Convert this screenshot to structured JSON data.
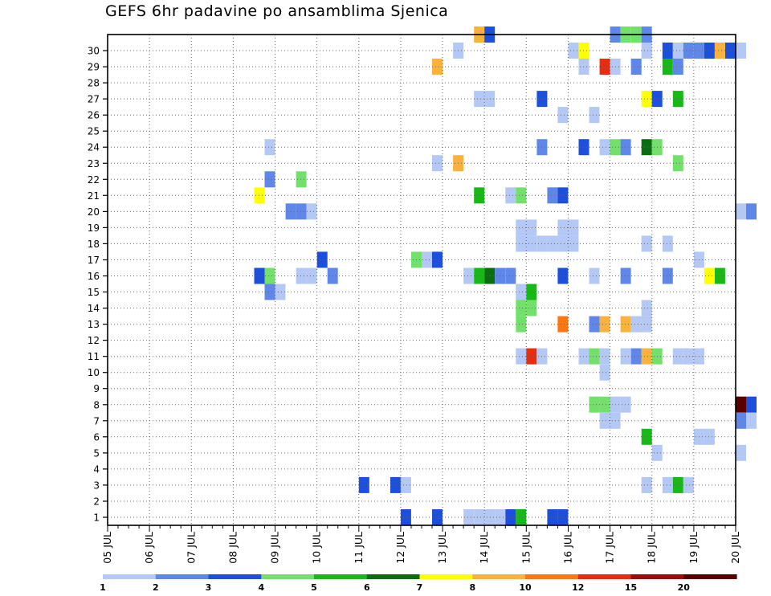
{
  "title": "GEFS 6hr padavine po ansamblima Sjenica",
  "chart_data": {
    "type": "heatmap",
    "title": "GEFS 6hr padavine po ansamblima Sjenica",
    "x_tick_labels": [
      "05 JUL",
      "06 JUL",
      "07 JUL",
      "08 JUL",
      "09 JUL",
      "10 JUL",
      "11 JUL",
      "12 JUL",
      "13 JUL",
      "14 JUL",
      "15 JUL",
      "16 JUL",
      "17 JUL",
      "18 JUL",
      "19 JUL",
      "20 JUL"
    ],
    "y_tick_labels": [
      "1",
      "2",
      "3",
      "4",
      "5",
      "6",
      "7",
      "8",
      "9",
      "10",
      "11",
      "12",
      "13",
      "14",
      "15",
      "16",
      "17",
      "18",
      "19",
      "20",
      "21",
      "22",
      "23",
      "24",
      "25",
      "26",
      "27",
      "28",
      "29",
      "30"
    ],
    "ylim": [
      0,
      30
    ],
    "grid": true,
    "colorbar": {
      "labels": [
        "1",
        "2",
        "3",
        "4",
        "5",
        "6",
        "7",
        "8",
        "10",
        "12",
        "15",
        "20"
      ],
      "colors": [
        "#b4c8f5",
        "#5f87ea",
        "#1b4fdc",
        "#74e06c",
        "#18b818",
        "#0b6d12",
        "#ffff00",
        "#fbb13d",
        "#fb7714",
        "#e52d0f",
        "#9b0d0d",
        "#5b0000"
      ]
    },
    "cells_note": "day = days after 05 JUL 00Z (6-hourly steps), member = ensemble member row 0..30, level = colorbar index 0..11",
    "cells": [
      [
        8.75,
        30,
        7
      ],
      [
        9.0,
        30,
        2
      ],
      [
        12.0,
        30,
        1
      ],
      [
        12.25,
        30,
        3
      ],
      [
        12.5,
        30,
        3
      ],
      [
        12.75,
        30,
        1
      ],
      [
        8.25,
        29,
        0
      ],
      [
        11.0,
        29,
        0
      ],
      [
        11.25,
        29,
        6
      ],
      [
        12.75,
        29,
        0
      ],
      [
        13.25,
        29,
        2
      ],
      [
        13.5,
        29,
        0
      ],
      [
        13.75,
        29,
        1
      ],
      [
        14.0,
        29,
        1
      ],
      [
        14.25,
        29,
        2
      ],
      [
        14.5,
        29,
        7
      ],
      [
        14.75,
        29,
        2
      ],
      [
        15.0,
        29,
        0
      ],
      [
        7.75,
        28,
        7
      ],
      [
        11.25,
        28,
        0
      ],
      [
        11.75,
        28,
        9
      ],
      [
        12.0,
        28,
        0
      ],
      [
        12.5,
        28,
        1
      ],
      [
        13.25,
        28,
        4
      ],
      [
        13.5,
        28,
        1
      ],
      [
        8.75,
        26,
        0
      ],
      [
        9.0,
        26,
        0
      ],
      [
        10.25,
        26,
        2
      ],
      [
        12.75,
        26,
        6
      ],
      [
        13.0,
        26,
        2
      ],
      [
        13.5,
        26,
        4
      ],
      [
        10.75,
        25,
        0
      ],
      [
        11.5,
        25,
        0
      ],
      [
        3.75,
        23,
        0
      ],
      [
        10.25,
        23,
        1
      ],
      [
        11.25,
        23,
        2
      ],
      [
        11.75,
        23,
        0
      ],
      [
        12.0,
        23,
        3
      ],
      [
        12.25,
        23,
        1
      ],
      [
        12.75,
        23,
        5
      ],
      [
        13.0,
        23,
        3
      ],
      [
        7.75,
        22,
        0
      ],
      [
        8.25,
        22,
        7
      ],
      [
        13.5,
        22,
        3
      ],
      [
        3.75,
        21,
        1
      ],
      [
        4.5,
        21,
        3
      ],
      [
        3.5,
        20,
        6
      ],
      [
        8.75,
        20,
        4
      ],
      [
        9.5,
        20,
        0
      ],
      [
        9.75,
        20,
        3
      ],
      [
        10.5,
        20,
        1
      ],
      [
        10.75,
        20,
        2
      ],
      [
        4.25,
        19,
        1
      ],
      [
        4.5,
        19,
        1
      ],
      [
        4.75,
        19,
        0
      ],
      [
        15.0,
        19,
        0
      ],
      [
        15.25,
        19,
        1
      ],
      [
        9.75,
        18,
        0
      ],
      [
        10.0,
        18,
        0
      ],
      [
        10.75,
        18,
        0
      ],
      [
        11.0,
        18,
        0
      ],
      [
        9.75,
        17,
        0
      ],
      [
        10.0,
        17,
        0
      ],
      [
        10.25,
        17,
        0
      ],
      [
        10.5,
        17,
        0
      ],
      [
        10.75,
        17,
        0
      ],
      [
        11.0,
        17,
        0
      ],
      [
        12.75,
        17,
        0
      ],
      [
        13.25,
        17,
        0
      ],
      [
        5.0,
        16,
        2
      ],
      [
        7.25,
        16,
        3
      ],
      [
        7.5,
        16,
        0
      ],
      [
        7.75,
        16,
        2
      ],
      [
        14.0,
        16,
        0
      ],
      [
        3.5,
        15,
        2
      ],
      [
        3.75,
        15,
        3
      ],
      [
        4.5,
        15,
        0
      ],
      [
        4.75,
        15,
        0
      ],
      [
        5.25,
        15,
        1
      ],
      [
        8.5,
        15,
        0
      ],
      [
        8.75,
        15,
        4
      ],
      [
        9.0,
        15,
        5
      ],
      [
        9.25,
        15,
        1
      ],
      [
        9.5,
        15,
        1
      ],
      [
        10.75,
        15,
        2
      ],
      [
        11.5,
        15,
        0
      ],
      [
        12.25,
        15,
        1
      ],
      [
        13.25,
        15,
        1
      ],
      [
        14.25,
        15,
        6
      ],
      [
        14.5,
        15,
        4
      ],
      [
        3.75,
        14,
        1
      ],
      [
        4.0,
        14,
        0
      ],
      [
        9.75,
        14,
        0
      ],
      [
        10.0,
        14,
        4
      ],
      [
        9.75,
        13,
        3
      ],
      [
        10.0,
        13,
        3
      ],
      [
        12.75,
        13,
        0
      ],
      [
        9.75,
        12,
        3
      ],
      [
        10.75,
        12,
        8
      ],
      [
        11.5,
        12,
        1
      ],
      [
        11.75,
        12,
        7
      ],
      [
        12.25,
        12,
        7
      ],
      [
        12.5,
        12,
        0
      ],
      [
        12.75,
        12,
        0
      ],
      [
        9.75,
        10,
        0
      ],
      [
        10.0,
        10,
        9
      ],
      [
        10.25,
        10,
        0
      ],
      [
        11.25,
        10,
        0
      ],
      [
        11.5,
        10,
        3
      ],
      [
        11.75,
        10,
        0
      ],
      [
        12.25,
        10,
        0
      ],
      [
        12.5,
        10,
        1
      ],
      [
        12.75,
        10,
        7
      ],
      [
        13.0,
        10,
        3
      ],
      [
        13.5,
        10,
        0
      ],
      [
        13.75,
        10,
        0
      ],
      [
        14.0,
        10,
        0
      ],
      [
        11.75,
        9,
        0
      ],
      [
        11.5,
        7,
        3
      ],
      [
        11.75,
        7,
        3
      ],
      [
        12.0,
        7,
        0
      ],
      [
        12.25,
        7,
        0
      ],
      [
        15.0,
        7,
        11
      ],
      [
        15.25,
        7,
        2
      ],
      [
        11.75,
        6,
        0
      ],
      [
        12.0,
        6,
        0
      ],
      [
        15.0,
        6,
        1
      ],
      [
        15.25,
        6,
        0
      ],
      [
        12.75,
        5,
        4
      ],
      [
        14.0,
        5,
        0
      ],
      [
        14.25,
        5,
        0
      ],
      [
        13.0,
        4,
        0
      ],
      [
        15.0,
        4,
        0
      ],
      [
        6.0,
        2,
        2
      ],
      [
        6.75,
        2,
        2
      ],
      [
        7.0,
        2,
        0
      ],
      [
        12.75,
        2,
        0
      ],
      [
        13.25,
        2,
        0
      ],
      [
        13.5,
        2,
        4
      ],
      [
        13.75,
        2,
        0
      ],
      [
        7.0,
        0,
        2
      ],
      [
        7.75,
        0,
        2
      ],
      [
        8.5,
        0,
        0
      ],
      [
        8.75,
        0,
        0
      ],
      [
        9.0,
        0,
        0
      ],
      [
        9.25,
        0,
        0
      ],
      [
        9.5,
        0,
        2
      ],
      [
        9.75,
        0,
        4
      ],
      [
        10.5,
        0,
        2
      ],
      [
        10.75,
        0,
        2
      ]
    ]
  }
}
